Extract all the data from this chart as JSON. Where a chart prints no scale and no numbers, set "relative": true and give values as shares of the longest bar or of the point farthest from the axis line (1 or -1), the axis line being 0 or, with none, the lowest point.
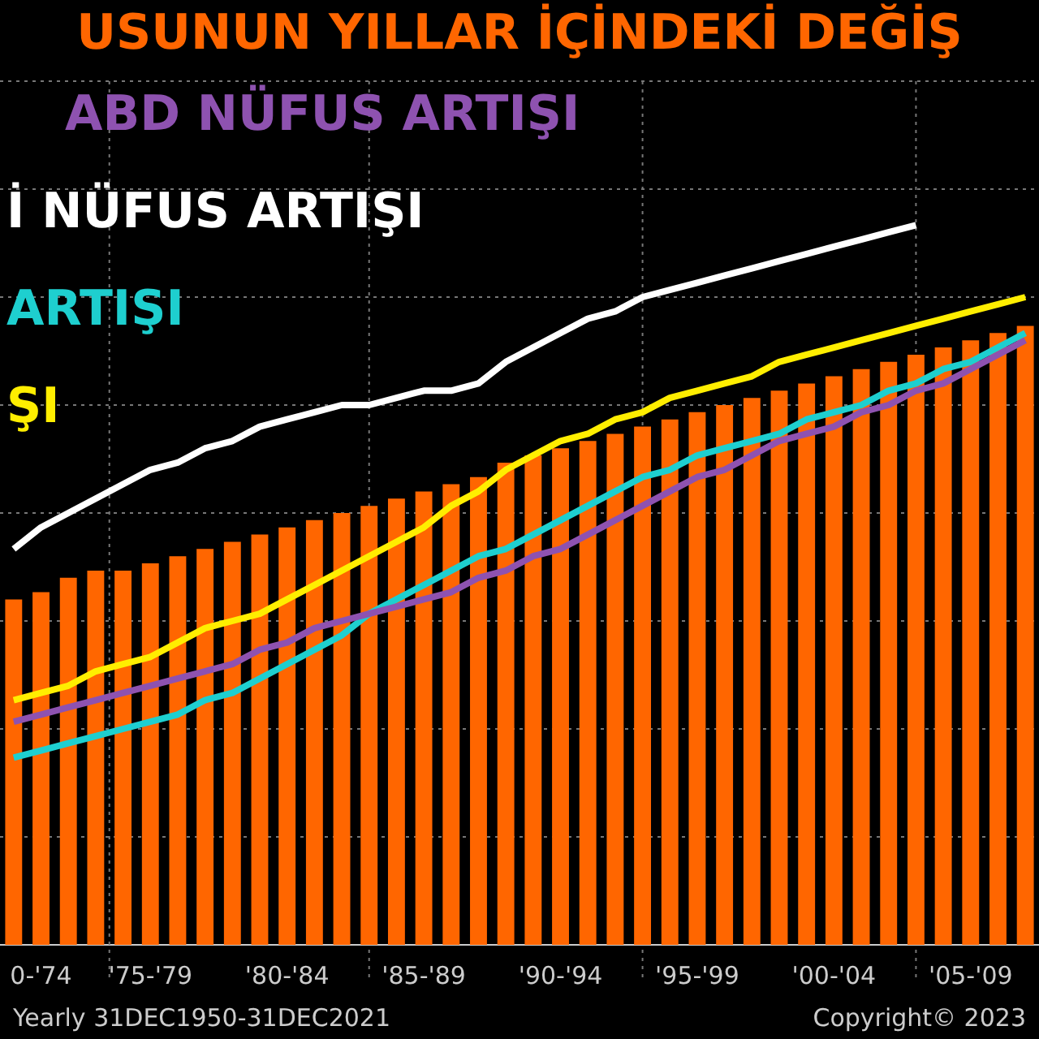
{
  "chart_data": {
    "type": "bar",
    "title": "USUNUN YILLAR İÇİNDEKİ DEĞİŞ",
    "relative": true,
    "grid": true,
    "categories": [
      null,
      "0-'74",
      null,
      null,
      null,
      "'75-'79",
      null,
      null,
      null,
      null,
      "'80-'84",
      null,
      null,
      null,
      null,
      "'85-'89",
      null,
      null,
      null,
      null,
      "'90-'94",
      null,
      null,
      null,
      null,
      "'95-'99",
      null,
      null,
      null,
      null,
      "'00-'04",
      null,
      null,
      null,
      null,
      "'05-'09",
      null,
      null
    ],
    "series": [
      {
        "color": "#ff6600",
        "values": [
          0.48,
          0.49,
          0.51,
          0.52,
          0.52,
          0.53,
          0.54,
          0.55,
          0.56,
          0.57,
          0.58,
          0.59,
          0.6,
          0.61,
          0.62,
          0.63,
          0.64,
          0.65,
          0.67,
          0.68,
          0.69,
          0.7,
          0.71,
          0.72,
          0.73,
          0.74,
          0.75,
          0.76,
          0.77,
          0.78,
          0.79,
          0.8,
          0.81,
          0.82,
          0.83,
          0.84,
          0.85,
          0.86
        ]
      },
      {
        "type": "line",
        "name": "ABD NÜFUS ARTIŞI",
        "color": "#8e52b0",
        "values": [
          0.31,
          0.32,
          0.33,
          0.34,
          0.35,
          0.36,
          0.37,
          0.38,
          0.39,
          0.41,
          0.42,
          0.44,
          0.45,
          0.46,
          0.47,
          0.48,
          0.49,
          0.51,
          0.52,
          0.54,
          0.55,
          0.57,
          0.59,
          0.61,
          0.63,
          0.65,
          0.66,
          0.68,
          0.7,
          0.71,
          0.72,
          0.74,
          0.75,
          0.77,
          0.78,
          0.8,
          0.82,
          0.84
        ]
      },
      {
        "type": "line",
        "name": "İ NÜFUS ARTIŞI",
        "color": "#ffffff",
        "values": [
          0.55,
          0.58,
          0.6,
          0.62,
          0.64,
          0.66,
          0.67,
          0.69,
          0.7,
          0.72,
          0.73,
          0.74,
          0.75,
          0.75,
          0.76,
          0.77,
          0.77,
          0.78,
          0.81,
          0.83,
          0.85,
          0.87,
          0.88,
          0.9,
          0.91,
          0.92,
          0.93,
          0.94,
          0.95,
          0.96,
          0.97,
          0.98,
          0.99,
          1.0,
          null,
          null,
          null,
          null
        ]
      },
      {
        "type": "line",
        "name": "ARTIŞI",
        "color": "#1ecfcf",
        "values": [
          0.26,
          0.27,
          0.28,
          0.29,
          0.3,
          0.31,
          0.32,
          0.34,
          0.35,
          0.37,
          0.39,
          0.41,
          0.43,
          0.46,
          0.48,
          0.5,
          0.52,
          0.54,
          0.55,
          0.57,
          0.59,
          0.61,
          0.63,
          0.65,
          0.66,
          0.68,
          0.69,
          0.7,
          0.71,
          0.73,
          0.74,
          0.75,
          0.77,
          0.78,
          0.8,
          0.81,
          0.83,
          0.85
        ]
      },
      {
        "type": "line",
        "name": "ŞI",
        "color": "#ffee00",
        "values": [
          0.34,
          0.35,
          0.36,
          0.38,
          0.39,
          0.4,
          0.42,
          0.44,
          0.45,
          0.46,
          0.48,
          0.5,
          0.52,
          0.54,
          0.56,
          0.58,
          0.61,
          0.63,
          0.66,
          0.68,
          0.7,
          0.71,
          0.73,
          0.74,
          0.76,
          0.77,
          0.78,
          0.79,
          0.81,
          0.82,
          0.83,
          0.84,
          0.85,
          0.86,
          0.87,
          0.88,
          0.89,
          0.9
        ]
      }
    ],
    "annotations": [
      "Yearly 31DEC1950-31DEC2021",
      "Copyright© 2023"
    ]
  }
}
